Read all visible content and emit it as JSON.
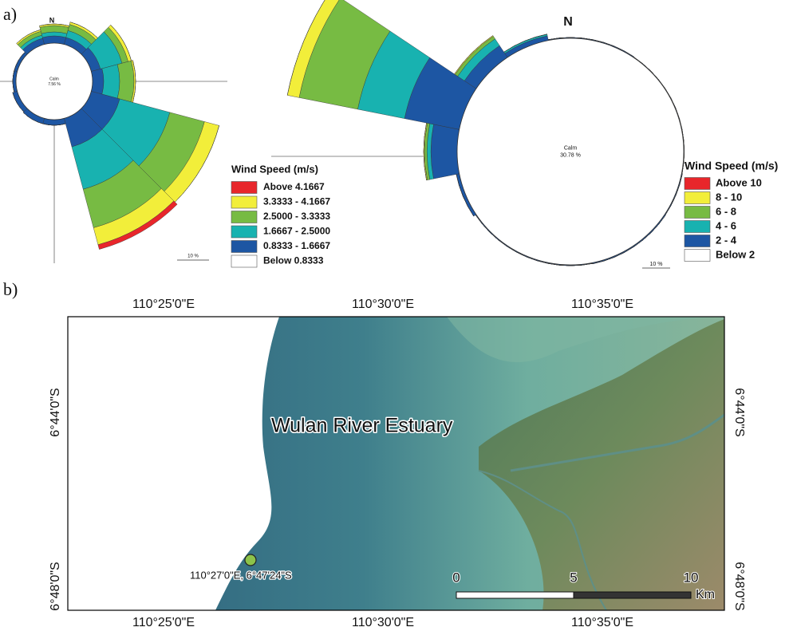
{
  "panel_labels": [
    "a)",
    "b)"
  ],
  "chart_data": [
    {
      "type": "windrose",
      "north_label": "N",
      "calm_title": "Calm",
      "calm": 7.56,
      "calm_value_label": "7.56 %",
      "scale_bar": {
        "value": 10,
        "label": "10 %"
      },
      "legend_title": "Wind Speed (m/s)",
      "x": [
        0,
        30,
        60,
        90,
        120,
        150,
        180,
        210,
        240,
        270,
        300,
        330
      ],
      "calm_legend": {
        "name": "Below 0.8333",
        "color": "#ffffff"
      },
      "series": [
        {
          "name": "0.8333 - 1.6667",
          "color": "#1d56a3",
          "values": [
            2.25,
            2.25,
            3,
            3.5,
            9.25,
            9.25,
            1.75,
            1.75,
            1.5,
            1,
            1,
            2
          ]
        },
        {
          "name": "1.6667 - 2.5000",
          "color": "#18b2b0",
          "values": [
            1.25,
            2.25,
            7,
            5,
            16.25,
            13.75,
            0,
            0,
            0,
            0,
            0,
            1
          ]
        },
        {
          "name": "2.5000 - 3.3333",
          "color": "#77bb43",
          "values": [
            2,
            2,
            2,
            4.5,
            11.25,
            12.5,
            0,
            0,
            0,
            0,
            0,
            1.25
          ]
        },
        {
          "name": "3.3333 - 4.1667",
          "color": "#f2ee3a",
          "values": [
            0.5,
            0.75,
            1,
            0.5,
            4.75,
            5.5,
            0,
            0,
            0,
            0,
            0,
            0.5
          ]
        },
        {
          "name": "Above 4.1667",
          "color": "#e8262b",
          "values": [
            0,
            0,
            0,
            0,
            0,
            1.5,
            0,
            0,
            0,
            0,
            0,
            0
          ]
        }
      ]
    },
    {
      "type": "windrose",
      "north_label": "N",
      "calm_title": "Calm",
      "calm": 30.78,
      "calm_value_label": "30.78 %",
      "scale_bar": {
        "value": 10,
        "label": "10 %"
      },
      "legend_title": "Wind Speed (m/s)",
      "x": [
        0,
        22.5,
        45,
        67.5,
        90,
        112.5,
        135,
        157.5,
        180,
        202.5,
        225,
        247.5,
        270,
        292.5,
        315,
        337.5
      ],
      "calm_legend": {
        "name": "Below 2",
        "color": "#ffffff"
      },
      "series": [
        {
          "name": "2 - 4",
          "color": "#1d56a3",
          "values": [
            0.3,
            0.3,
            0.2,
            0.2,
            0.2,
            0.3,
            0.4,
            0.4,
            0.3,
            0.3,
            0.3,
            1.1,
            9.4,
            20,
            5.1,
            1.7
          ]
        },
        {
          "name": "4 - 6",
          "color": "#18b2b0",
          "values": [
            0,
            0,
            0,
            0,
            0,
            0,
            0,
            0,
            0,
            0,
            0,
            0,
            1.4,
            17.1,
            2.9,
            0.6
          ]
        },
        {
          "name": "6 - 8",
          "color": "#77bb43",
          "values": [
            0,
            0,
            0,
            0,
            0,
            0,
            0,
            0,
            0,
            0,
            0,
            0,
            0.9,
            21.4,
            1.1,
            0
          ]
        },
        {
          "name": "8 - 10",
          "color": "#f2ee3a",
          "values": [
            0,
            0,
            0,
            0,
            0,
            0,
            0,
            0,
            0,
            0,
            0,
            0,
            0.3,
            4.3,
            0.3,
            0
          ]
        },
        {
          "name": "Above 10",
          "color": "#e8262b",
          "values": [
            0,
            0,
            0,
            0,
            0,
            0,
            0,
            0,
            0,
            0,
            0,
            0,
            0,
            0,
            0,
            0
          ]
        }
      ]
    }
  ],
  "map": {
    "lon_labels": [
      "110°25'0\"E",
      "110°30'0\"E",
      "110°35'0\"E"
    ],
    "lat_labels": [
      "6°44'0\"S",
      "6°48'0\"S"
    ],
    "place_label": "Wulan River Estuary",
    "station_label": "110°27'0\"E, 6°47'24\"S",
    "scale_ticks": [
      0,
      5,
      10
    ],
    "scale_unit": "Km"
  }
}
